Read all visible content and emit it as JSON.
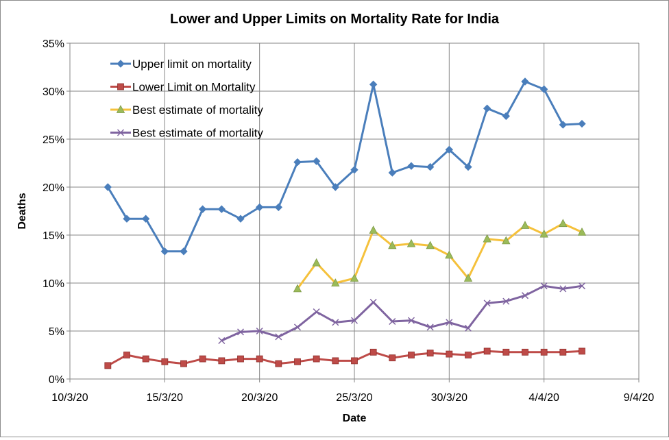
{
  "chart_data": {
    "type": "line",
    "title": "Lower and Upper Limits on Mortality Rate for India",
    "xlabel": "Date",
    "ylabel": "Deaths",
    "xlim": [
      "2020-03-10",
      "2020-04-09"
    ],
    "ylim": [
      0,
      0.35
    ],
    "x_ticks": [
      "2020-03-10",
      "2020-03-15",
      "2020-03-20",
      "2020-03-25",
      "2020-03-30",
      "2020-04-04",
      "2020-04-09"
    ],
    "x_tick_labels": [
      "10/3/20",
      "15/3/20",
      "20/3/20",
      "25/3/20",
      "30/3/20",
      "4/4/20",
      "9/4/20"
    ],
    "y_ticks": [
      0,
      0.05,
      0.1,
      0.15,
      0.2,
      0.25,
      0.3,
      0.35
    ],
    "y_tick_labels": [
      "0%",
      "5%",
      "10%",
      "15%",
      "20%",
      "25%",
      "30%",
      "35%"
    ],
    "grid": true,
    "legend_position": "top-left",
    "series": [
      {
        "name": "Upper limit on mortality",
        "color": "#4a7ebb",
        "marker": "diamond",
        "x": [
          "2020-03-12",
          "2020-03-13",
          "2020-03-14",
          "2020-03-15",
          "2020-03-16",
          "2020-03-17",
          "2020-03-18",
          "2020-03-19",
          "2020-03-20",
          "2020-03-21",
          "2020-03-22",
          "2020-03-23",
          "2020-03-24",
          "2020-03-25",
          "2020-03-26",
          "2020-03-27",
          "2020-03-28",
          "2020-03-29",
          "2020-03-30",
          "2020-03-31",
          "2020-04-01",
          "2020-04-02",
          "2020-04-03",
          "2020-04-04",
          "2020-04-05",
          "2020-04-06"
        ],
        "values": [
          0.2,
          0.167,
          0.167,
          0.133,
          0.133,
          0.177,
          0.177,
          0.167,
          0.179,
          0.179,
          0.226,
          0.227,
          0.2,
          0.218,
          0.307,
          0.215,
          0.222,
          0.221,
          0.239,
          0.221,
          0.282,
          0.274,
          0.31,
          0.302,
          0.265,
          0.266
        ]
      },
      {
        "name": "Lower Limit on Mortality",
        "color": "#be4b48",
        "marker": "square",
        "x": [
          "2020-03-12",
          "2020-03-13",
          "2020-03-14",
          "2020-03-15",
          "2020-03-16",
          "2020-03-17",
          "2020-03-18",
          "2020-03-19",
          "2020-03-20",
          "2020-03-21",
          "2020-03-22",
          "2020-03-23",
          "2020-03-24",
          "2020-03-25",
          "2020-03-26",
          "2020-03-27",
          "2020-03-28",
          "2020-03-29",
          "2020-03-30",
          "2020-03-31",
          "2020-04-01",
          "2020-04-02",
          "2020-04-03",
          "2020-04-04",
          "2020-04-05",
          "2020-04-06"
        ],
        "values": [
          0.014,
          0.025,
          0.021,
          0.018,
          0.016,
          0.021,
          0.019,
          0.021,
          0.021,
          0.016,
          0.018,
          0.021,
          0.019,
          0.019,
          0.028,
          0.022,
          0.025,
          0.027,
          0.026,
          0.025,
          0.029,
          0.028,
          0.028,
          0.028,
          0.028,
          0.029
        ]
      },
      {
        "name": "Best estimate of mortality",
        "color": "#f5c13b",
        "marker": "triangle",
        "x": [
          "2020-03-22",
          "2020-03-23",
          "2020-03-24",
          "2020-03-25",
          "2020-03-26",
          "2020-03-27",
          "2020-03-28",
          "2020-03-29",
          "2020-03-30",
          "2020-03-31",
          "2020-04-01",
          "2020-04-02",
          "2020-04-03",
          "2020-04-04",
          "2020-04-05",
          "2020-04-06"
        ],
        "values": [
          0.094,
          0.121,
          0.1,
          0.105,
          0.155,
          0.139,
          0.141,
          0.139,
          0.129,
          0.105,
          0.146,
          0.144,
          0.16,
          0.151,
          0.162,
          0.153
        ]
      },
      {
        "name": "Best estimate of mortality",
        "color": "#7f64a0",
        "marker": "x",
        "x": [
          "2020-03-18",
          "2020-03-19",
          "2020-03-20",
          "2020-03-21",
          "2020-03-22",
          "2020-03-23",
          "2020-03-24",
          "2020-03-25",
          "2020-03-26",
          "2020-03-27",
          "2020-03-28",
          "2020-03-29",
          "2020-03-30",
          "2020-03-31",
          "2020-04-01",
          "2020-04-02",
          "2020-04-03",
          "2020-04-04",
          "2020-04-05",
          "2020-04-06"
        ],
        "values": [
          0.04,
          0.049,
          0.05,
          0.044,
          0.054,
          0.07,
          0.059,
          0.061,
          0.08,
          0.06,
          0.061,
          0.054,
          0.059,
          0.053,
          0.079,
          0.081,
          0.087,
          0.097,
          0.094,
          0.097
        ]
      }
    ]
  }
}
